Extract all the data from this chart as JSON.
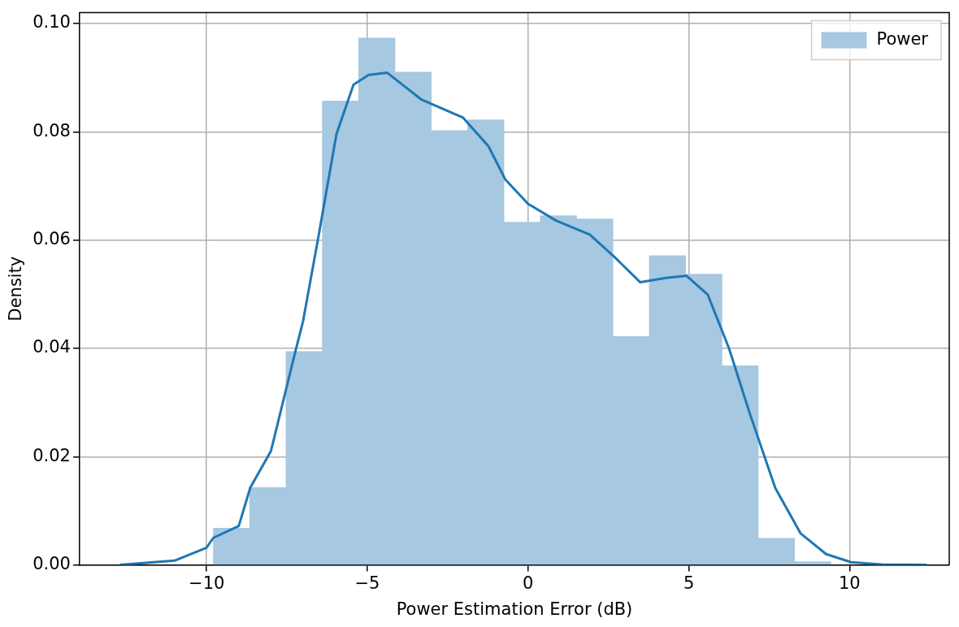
{
  "chart_data": {
    "type": "histogram",
    "xlabel": "Power Estimation Error (dB)",
    "ylabel": "Density",
    "series": [
      {
        "type": "histogram",
        "name": "Power",
        "color": "#a6c8e0",
        "bins": [
          -9.79,
          -8.66,
          -7.53,
          -6.4,
          -5.27,
          -4.14,
          -3.01,
          -1.88,
          -0.75,
          0.38,
          1.51,
          2.64,
          3.77,
          4.9,
          6.03,
          7.16,
          8.29,
          9.42
        ],
        "values": [
          0.0068,
          0.0143,
          0.0394,
          0.0857,
          0.0973,
          0.091,
          0.0802,
          0.0822,
          0.0633,
          0.0645,
          0.0639,
          0.0422,
          0.0571,
          0.0537,
          0.0368,
          0.0049,
          0.0006
        ]
      },
      {
        "type": "line",
        "color": "#1f77b4",
        "x": [
          -12.7,
          -11,
          -10,
          -9.79,
          -9,
          -8.64,
          -8,
          -7.24,
          -7,
          -6.54,
          -5.96,
          -5.43,
          -4.96,
          -4.38,
          -3.33,
          -2.02,
          -1.23,
          -0.71,
          0,
          0.87,
          1.92,
          2.7,
          3.49,
          4.28,
          4.93,
          5.59,
          6.25,
          6.9,
          7.69,
          8.48,
          9.27,
          10.05,
          11,
          12.4
        ],
        "values": [
          0,
          0.0008,
          0.0032,
          0.005,
          0.0072,
          0.0143,
          0.021,
          0.0394,
          0.045,
          0.06,
          0.0796,
          0.0887,
          0.0905,
          0.0909,
          0.086,
          0.0826,
          0.0773,
          0.0712,
          0.0667,
          0.0636,
          0.061,
          0.0568,
          0.0522,
          0.053,
          0.0534,
          0.0499,
          0.04,
          0.0279,
          0.0142,
          0.0058,
          0.002,
          0.0005,
          0.0001,
          0
        ]
      }
    ],
    "xlim": [
      -13.95,
      13.1
    ],
    "xticks": [
      {
        "value": -10,
        "label": "−10"
      },
      {
        "value": -5,
        "label": "−5"
      },
      0,
      5,
      10
    ],
    "ylim": [
      0,
      0.102
    ],
    "yticks": [
      {
        "value": 0,
        "label": "0.00"
      },
      {
        "value": 0.02,
        "label": "0.02"
      },
      {
        "value": 0.04,
        "label": "0.04"
      },
      {
        "value": 0.06,
        "label": "0.06"
      },
      {
        "value": 0.08,
        "label": "0.08"
      },
      {
        "value": 0.1,
        "label": "0.10"
      }
    ],
    "grid": true,
    "legend": "top right"
  }
}
